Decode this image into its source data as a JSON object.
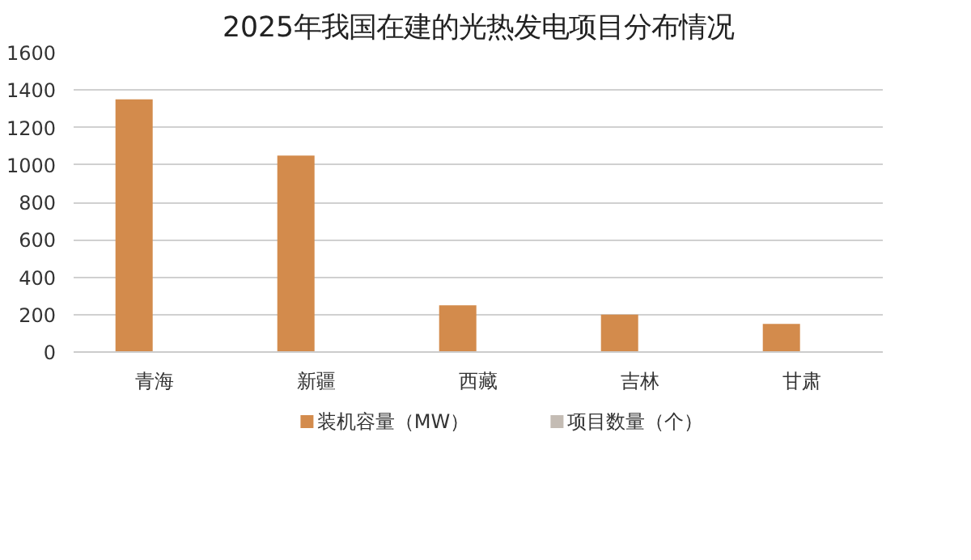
{
  "chart_data": {
    "type": "bar",
    "title": "2025年我国在建的光热发电项目分布情况",
    "categories": [
      "青海",
      "新疆",
      "西藏",
      "吉林",
      "甘肃"
    ],
    "series": [
      {
        "name": "装机容量（MW）",
        "color": "#d38b4c",
        "values": [
          1350,
          1050,
          250,
          200,
          150
        ]
      },
      {
        "name": "项目数量（个）",
        "color": "#c4bcb4",
        "values": [
          null,
          null,
          null,
          null,
          null
        ]
      }
    ],
    "ylim": [
      0,
      1600
    ],
    "yticks": [
      0,
      200,
      400,
      600,
      800,
      1000,
      1200,
      1400,
      1600
    ],
    "grid": "y",
    "legend": "bottom"
  }
}
